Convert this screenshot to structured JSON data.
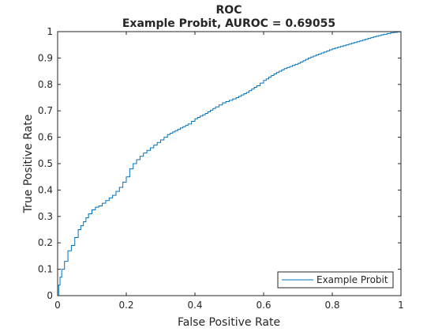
{
  "chart_data": {
    "type": "line",
    "title": "ROC",
    "subtitle": "Example Probit, AUROC = 0.69055",
    "xlabel": "False Positive Rate",
    "ylabel": "True Positive Rate",
    "xlim": [
      0,
      1
    ],
    "ylim": [
      0,
      1
    ],
    "xticks": [
      "0",
      "0.2",
      "0.4",
      "0.6",
      "0.8",
      "1"
    ],
    "yticks": [
      "0",
      "0.1",
      "0.2",
      "0.3",
      "0.4",
      "0.5",
      "0.6",
      "0.7",
      "0.8",
      "0.9",
      "1"
    ],
    "grid": false,
    "legend_position": "bottom-right",
    "series": [
      {
        "name": "Example Probit",
        "color": "#0072BD",
        "x": [
          0,
          0.003,
          0.007,
          0.012,
          0.02,
          0.03,
          0.04,
          0.05,
          0.06,
          0.075,
          0.09,
          0.1,
          0.11,
          0.12,
          0.14,
          0.16,
          0.18,
          0.2,
          0.21,
          0.22,
          0.23,
          0.25,
          0.27,
          0.29,
          0.3,
          0.32,
          0.35,
          0.38,
          0.4,
          0.43,
          0.46,
          0.48,
          0.5,
          0.52,
          0.55,
          0.58,
          0.6,
          0.63,
          0.66,
          0.7,
          0.73,
          0.76,
          0.8,
          0.84,
          0.88,
          0.92,
          0.95,
          0.97,
          0.99,
          1.0
        ],
        "y": [
          0,
          0.04,
          0.07,
          0.1,
          0.13,
          0.17,
          0.19,
          0.22,
          0.25,
          0.28,
          0.31,
          0.325,
          0.335,
          0.34,
          0.36,
          0.38,
          0.41,
          0.45,
          0.48,
          0.5,
          0.515,
          0.54,
          0.56,
          0.58,
          0.59,
          0.61,
          0.63,
          0.65,
          0.67,
          0.69,
          0.715,
          0.73,
          0.74,
          0.75,
          0.77,
          0.795,
          0.815,
          0.84,
          0.86,
          0.88,
          0.9,
          0.915,
          0.935,
          0.95,
          0.965,
          0.98,
          0.99,
          0.996,
          0.999,
          1.0
        ]
      }
    ]
  }
}
